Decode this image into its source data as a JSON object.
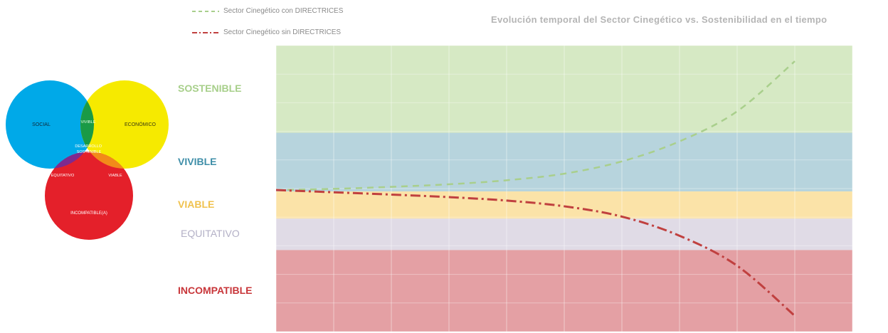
{
  "venn": {
    "circles": [
      {
        "label": "SOCIAL",
        "color": "#00a9e8"
      },
      {
        "label": "ECONÓMICO",
        "color": "#f6ea00"
      },
      {
        "label": "INCOMPATIBLE(A)",
        "color": "#e4202a"
      }
    ],
    "overlaps": [
      {
        "label": "VIVIBLE",
        "color": "#1a9a46"
      },
      {
        "label": "VIABLE",
        "color": "#f28a1a"
      },
      {
        "label": "EQUITATIVO",
        "color": "#7f2a8f"
      },
      {
        "label": "DESARROLLO SOSTENIBLE",
        "color": "#9c9c9c"
      }
    ]
  },
  "legend": [
    {
      "label": "Sector Cinegético con DIRECTRICES",
      "color": "#a9cf8c",
      "style": "dash"
    },
    {
      "label": "Sector Cinegético sin DIRECTRICES",
      "color": "#c0403f",
      "style": "dash-dot"
    }
  ],
  "chart_data": {
    "type": "line",
    "title": "Evolución temporal del Sector Cinegético vs. Sostenibilidad en el tiempo",
    "xlabel": "",
    "ylabel": "",
    "xlim": [
      0,
      10
    ],
    "ylim": [
      0,
      10
    ],
    "grid": true,
    "bands": [
      {
        "label": "SOSTENIBLE",
        "from": 6.95,
        "to": 10,
        "color": "#d6e9c4",
        "label_color": "#a7cf8a"
      },
      {
        "label": "VIVIBLE",
        "from": 4.9,
        "to": 6.95,
        "color": "#b7d4dd",
        "label_color": "#3e8ea8"
      },
      {
        "label": "VIABLE",
        "from": 3.95,
        "to": 4.9,
        "color": "#fbe3a8",
        "label_color": "#f0c24e"
      },
      {
        "label": "EQUITATIVO",
        "from": 2.85,
        "to": 3.95,
        "color": "#e0dbe6",
        "label_color": "#b3b0c6"
      },
      {
        "label": "INCOMPATIBLE",
        "from": 0,
        "to": 2.85,
        "color": "#e4a0a4",
        "label_color": "#c8363a"
      }
    ],
    "series": [
      {
        "name": "Sector Cinegético con DIRECTRICES",
        "color": "#a9cf8c",
        "style": "dash",
        "x": [
          0,
          1,
          2,
          3,
          4,
          5,
          6,
          7,
          8,
          9
        ],
        "y": [
          4.95,
          4.99,
          5.06,
          5.15,
          5.29,
          5.52,
          5.95,
          6.65,
          7.7,
          9.45
        ]
      },
      {
        "name": "Sector Cinegético sin DIRECTRICES",
        "color": "#c0403f",
        "style": "dash-dot",
        "x": [
          0,
          1,
          2,
          3,
          4,
          5,
          6,
          7,
          8,
          9
        ],
        "y": [
          4.95,
          4.87,
          4.79,
          4.7,
          4.58,
          4.38,
          4.02,
          3.35,
          2.3,
          0.55
        ]
      }
    ]
  }
}
